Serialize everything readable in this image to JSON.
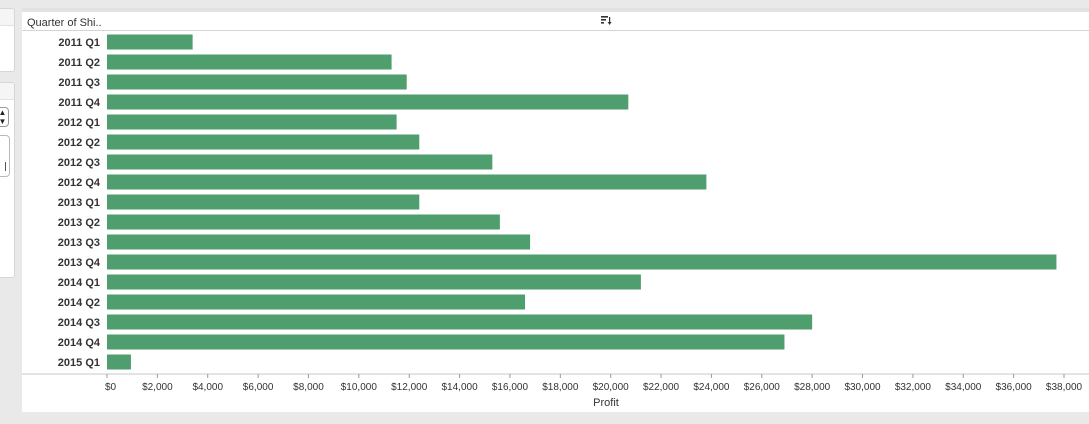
{
  "worksheet": {
    "row_header": "Quarter of Shi..",
    "sort_icon": "sort-descending-icon"
  },
  "colors": {
    "bar": "#4e9e6e",
    "background": "#ffffff",
    "axis_line": "#c8c8c8"
  },
  "chart_data": {
    "type": "bar",
    "orientation": "horizontal",
    "categories": [
      "2011 Q1",
      "2011 Q2",
      "2011 Q3",
      "2011 Q4",
      "2012 Q1",
      "2012 Q2",
      "2012 Q3",
      "2012 Q4",
      "2013 Q1",
      "2013 Q2",
      "2013 Q3",
      "2013 Q4",
      "2014 Q1",
      "2014 Q2",
      "2014 Q3",
      "2014 Q4",
      "2015 Q1"
    ],
    "values": [
      3400,
      11300,
      11900,
      20700,
      11500,
      12400,
      15300,
      23800,
      12400,
      15600,
      16800,
      37700,
      21200,
      16600,
      28000,
      26900,
      950
    ],
    "xlabel": "Profit",
    "ylabel": "Quarter of Shi..",
    "xlim": [
      0,
      38000
    ],
    "x_ticks": [
      "$0",
      "$2,000",
      "$4,000",
      "$6,000",
      "$8,000",
      "$10,000",
      "$12,000",
      "$14,000",
      "$16,000",
      "$18,000",
      "$20,000",
      "$22,000",
      "$24,000",
      "$26,000",
      "$28,000",
      "$30,000",
      "$32,000",
      "$34,000",
      "$36,000",
      "$38,000"
    ],
    "grid": false,
    "legend": "none"
  }
}
